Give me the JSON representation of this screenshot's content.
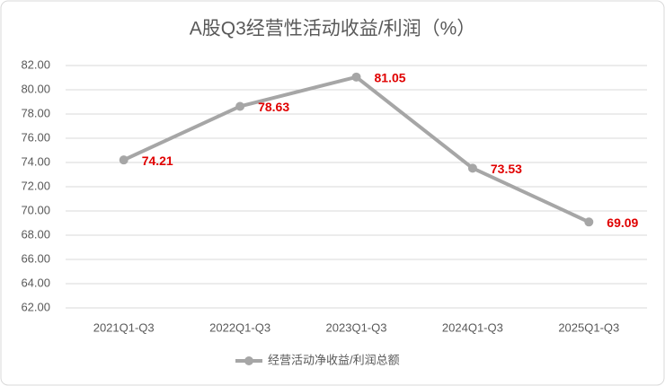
{
  "chart_data": {
    "type": "line",
    "title": "A股Q3经营性活动收益/利润（%）",
    "categories": [
      "2021Q1-Q3",
      "2022Q1-Q3",
      "2023Q1-Q3",
      "2024Q1-Q3",
      "2025Q1-Q3"
    ],
    "series": [
      {
        "name": "经营活动净收益/利润总额",
        "color": "#a6a6a6",
        "values": [
          74.21,
          78.63,
          81.05,
          73.53,
          69.09
        ]
      }
    ],
    "label_color": "#e00000",
    "ylim": [
      62,
      82
    ],
    "yticks": [
      {
        "value": 62,
        "label": "62.00"
      },
      {
        "value": 64,
        "label": "64.00"
      },
      {
        "value": 66,
        "label": "66.00"
      },
      {
        "value": 68,
        "label": "68.00"
      },
      {
        "value": 70,
        "label": "70.00"
      },
      {
        "value": 72,
        "label": "72.00"
      },
      {
        "value": 74,
        "label": "74.00"
      },
      {
        "value": 76,
        "label": "76.00"
      },
      {
        "value": 78,
        "label": "78.00"
      },
      {
        "value": 80,
        "label": "80.00"
      },
      {
        "value": 82,
        "label": "82.00"
      }
    ],
    "grid": true,
    "legend": "bottom"
  }
}
